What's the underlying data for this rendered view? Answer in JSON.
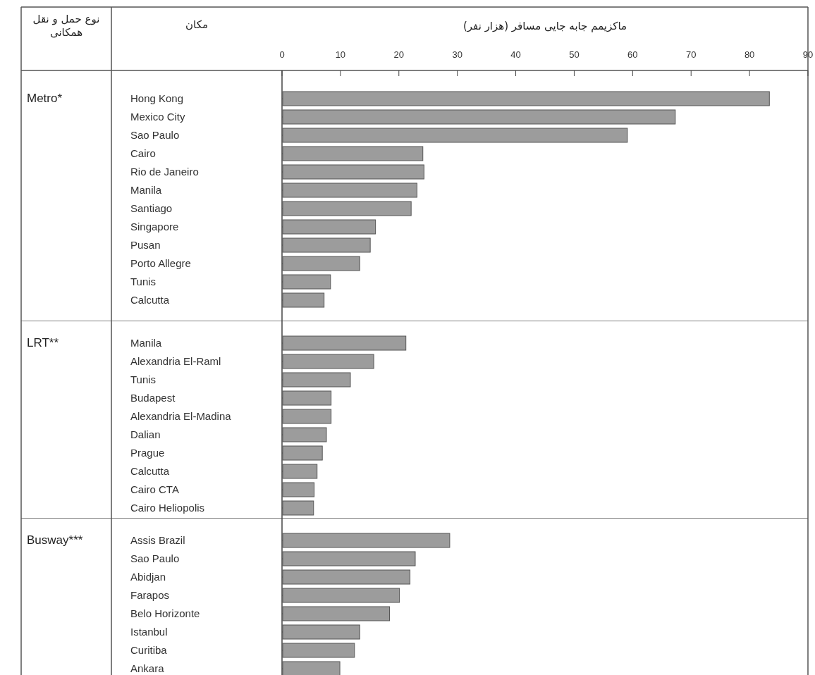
{
  "chart_data": [
    {
      "type": "bar",
      "orientation": "horizontal",
      "xlabel": "ماکزیمم جابه جایی مسافر (هزار نفر)",
      "ylabel": "Metro*",
      "annotations": [
        "نوع حمل و نقل همکانی",
        "مکان"
      ],
      "categories": [
        "Hong Kong",
        "Mexico City",
        "Sao Paulo",
        "Cairo",
        "Rio de Janeiro",
        "Manila",
        "Santiago",
        "Singapore",
        "Pusan",
        "Porto Allegre",
        "Tunis",
        "Calcutta"
      ],
      "values": [
        83.4,
        67.3,
        59.1,
        24.1,
        24.3,
        23.1,
        22.1,
        16.0,
        15.1,
        13.3,
        8.3,
        7.2
      ],
      "color": "#9c9c9c",
      "xlim": [
        0,
        90
      ],
      "xticks": [
        0,
        10,
        20,
        30,
        40,
        50,
        60,
        70,
        80,
        90
      ]
    },
    {
      "type": "bar",
      "orientation": "horizontal",
      "ylabel": "LRT**",
      "categories": [
        "Manila",
        "Alexandria El-Raml",
        "Tunis",
        "Budapest",
        "Alexandria El-Madina",
        "Dalian",
        "Prague",
        "Calcutta",
        "Cairo CTA",
        "Cairo Heliopolis"
      ],
      "values": [
        21.2,
        15.7,
        11.7,
        8.4,
        8.4,
        7.6,
        6.9,
        6.0,
        5.5,
        5.4
      ],
      "color": "#9c9c9c",
      "xlim": [
        0,
        90
      ],
      "tick_labels": "y"
    },
    {
      "type": "bar",
      "orientation": "horizontal",
      "ylabel": "Busway***",
      "categories": [
        "Assis Brazil",
        "Sao Paulo",
        "Abidjan",
        "Farapos",
        "Belo Horizonte",
        "Istanbul",
        "Curitiba",
        "Ankara"
      ],
      "values": [
        28.7,
        22.8,
        21.9,
        20.1,
        18.4,
        13.3,
        12.4,
        9.9
      ],
      "color": "#9c9c9c",
      "xlim": [
        0,
        90
      ],
      "tick_labels": "y"
    }
  ]
}
